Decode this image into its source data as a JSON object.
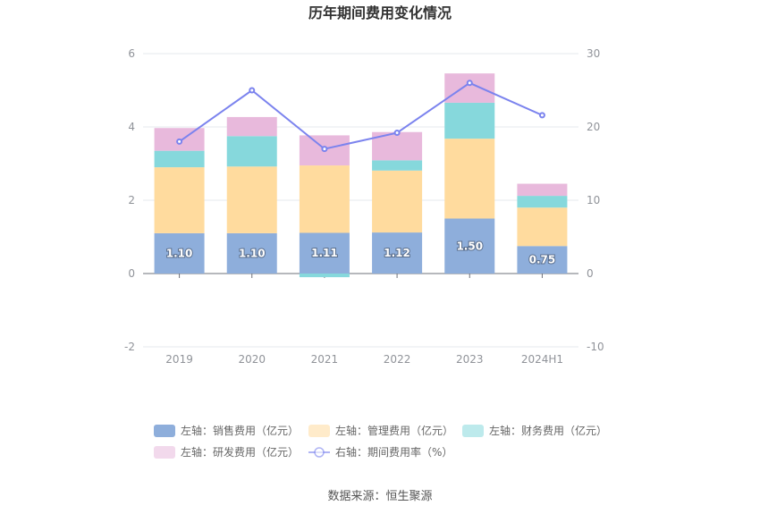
{
  "chart_data": {
    "type": "bar",
    "title": "历年期间费用变化情况",
    "categories": [
      "2019",
      "2020",
      "2021",
      "2022",
      "2023",
      "2024H1"
    ],
    "stacked": true,
    "left_axis": {
      "ticks": [
        "6",
        "4",
        "2",
        "0",
        "-2"
      ],
      "ylim": [
        -2,
        6
      ]
    },
    "right_axis": {
      "ticks": [
        "30",
        "20",
        "10",
        "0",
        "-10"
      ],
      "ylim": [
        -10,
        30
      ]
    },
    "series": [
      {
        "name": "左轴：销售费用（亿元）",
        "type": "bar",
        "color": "#8eaedb",
        "values": [
          1.1,
          1.1,
          1.11,
          1.12,
          1.5,
          0.75
        ],
        "labels": [
          "1.10",
          "1.10",
          "1.11",
          "1.12",
          "1.50",
          "0.75"
        ]
      },
      {
        "name": "左轴：管理费用（亿元）",
        "type": "bar",
        "color": "#ffdb9e",
        "values": [
          1.8,
          1.82,
          1.84,
          1.69,
          2.18,
          1.05
        ]
      },
      {
        "name": "左轴：财务费用（亿元）",
        "type": "bar",
        "color": "#86d8dc",
        "values": [
          0.45,
          0.83,
          -0.1,
          0.28,
          0.98,
          0.32
        ]
      },
      {
        "name": "左轴：研发费用（亿元）",
        "type": "bar",
        "color": "#e8b9dc",
        "values": [
          0.62,
          0.52,
          0.82,
          0.77,
          0.8,
          0.33
        ]
      },
      {
        "name": "右轴：期间费用率（%）",
        "type": "line",
        "color": "#7b83ee",
        "axis": "right",
        "values": [
          18.0,
          25.0,
          17.0,
          19.2,
          26.0,
          21.6
        ]
      }
    ],
    "legend_position": "bottom",
    "grid": true
  },
  "source": "数据来源：恒生聚源"
}
